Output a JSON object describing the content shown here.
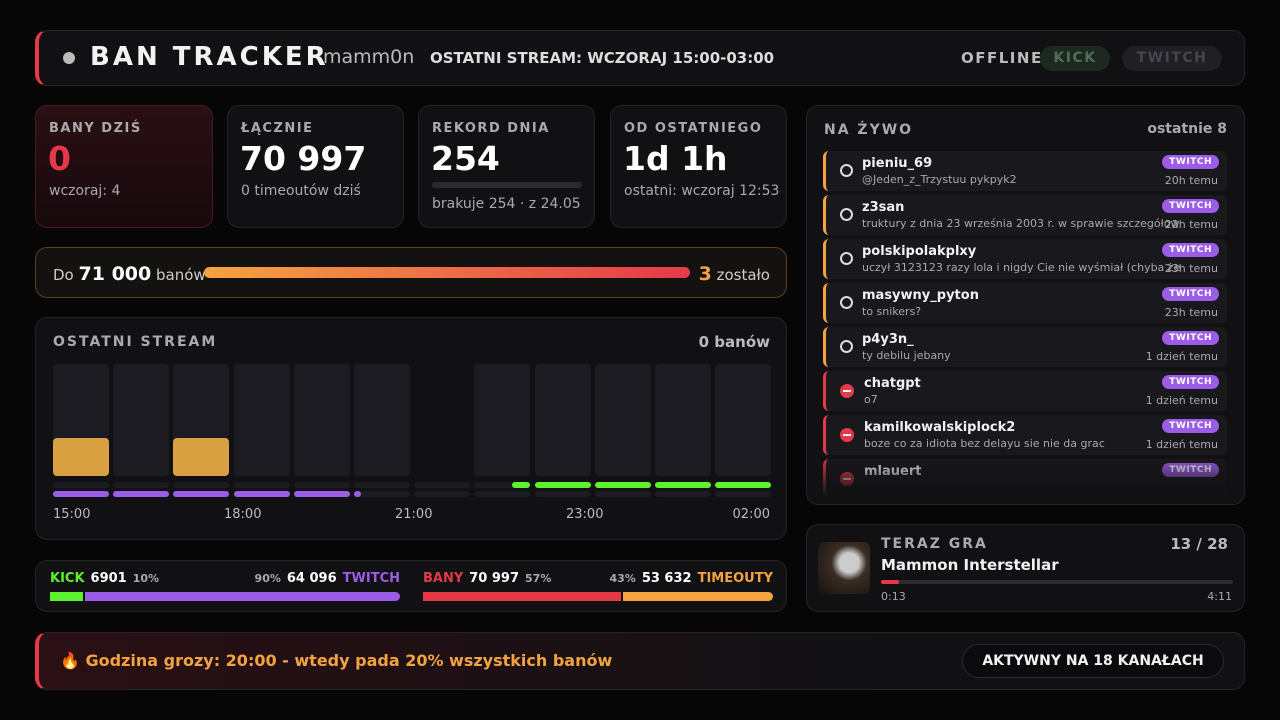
{
  "header": {
    "title": "BAN TRACKER",
    "user": "mamm0n",
    "stream": "OSTATNI STREAM: WCZORAJ 15:00-03:00",
    "status": "OFFLINE",
    "buttons": [
      "KICK",
      "TWITCH"
    ]
  },
  "stats": [
    {
      "label": "BANY DZIŚ",
      "value": "0",
      "sub": "wczoraj: 4"
    },
    {
      "label": "ŁĄCZNIE",
      "value": "70 997",
      "sub": "0 timeoutów dziś"
    },
    {
      "label": "REKORD DNIA",
      "value": "254",
      "sub": "brakuje 254 · z 24.05"
    },
    {
      "label": "OD OSTATNIEGO",
      "value": "1d 1h",
      "sub": "ostatni: wczoraj 12:53"
    }
  ],
  "goal": {
    "prefix": "Do",
    "target": "71 000",
    "unit": "banów",
    "left": "3",
    "left_label": "zostało"
  },
  "last_stream": {
    "title": "OSTATNI STREAM",
    "total": "0 banów",
    "x_labels": [
      "15:00",
      "18:00",
      "21:00",
      "23:00",
      "02:00"
    ]
  },
  "split": [
    {
      "left_name": "KICK",
      "left_value": "6901",
      "left_pct": "10%",
      "right_pct": "90%",
      "right_value": "64 096",
      "right_name": "TWITCH"
    },
    {
      "left_name": "BANY",
      "left_value": "70 997",
      "left_pct": "57%",
      "right_pct": "43%",
      "right_value": "53 632",
      "right_name": "TIMEOUTY"
    }
  ],
  "live": {
    "title": "NA ŻYWO",
    "count": "ostatnie 8",
    "items": [
      {
        "icon": "timeout",
        "user": "pieniu_69",
        "message": "@Jeden_z_Trzystuu pykpyk2",
        "badge": "TWITCH",
        "time": "20h temu"
      },
      {
        "icon": "timeout",
        "user": "z3san",
        "message": "truktury z dnia 23 września 2003 r. w sprawie szczegółow",
        "badge": "TWITCH",
        "time": "22h temu"
      },
      {
        "icon": "timeout",
        "user": "polskipolakplxy",
        "message": "uczył 3123123 razy lola i nigdy Cie nie wyśmiał (chyba że",
        "badge": "TWITCH",
        "time": "23h temu"
      },
      {
        "icon": "timeout",
        "user": "masywny_pyton",
        "message": "to snikers?",
        "badge": "TWITCH",
        "time": "23h temu"
      },
      {
        "icon": "timeout",
        "user": "p4y3n_",
        "message": "ty debilu jebany",
        "badge": "TWITCH",
        "time": "1 dzień temu"
      },
      {
        "icon": "ban",
        "user": "chatgpt",
        "message": "o7",
        "badge": "TWITCH",
        "time": "1 dzień temu"
      },
      {
        "icon": "ban",
        "user": "kamilkowalskiplock2",
        "message": "boze co za idiota bez delayu sie nie da grac",
        "badge": "TWITCH",
        "time": "1 dzień temu"
      },
      {
        "icon": "ban",
        "user": "mlauert",
        "badge": "TWITCH"
      }
    ]
  },
  "now_playing": {
    "label": "TERAZ GRA",
    "position": "13 / 28",
    "title": "Mammon Interstellar",
    "elapsed": "0:13",
    "duration": "4:11"
  },
  "footer": {
    "text": "🔥 Godzina grozy: 20:00 - wtedy pada 20% wszystkich banów",
    "channels": "AKTYWNY NA 18 KANAŁACH"
  }
}
